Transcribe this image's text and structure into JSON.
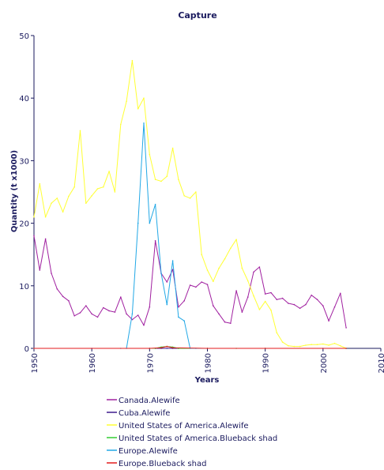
{
  "chart_data": {
    "type": "line",
    "title": "Capture",
    "xlabel": "Years",
    "ylabel": "Quantity (t x1000)",
    "xlim": [
      1950,
      2010
    ],
    "ylim": [
      0,
      50
    ],
    "xticks": [
      "1950",
      "1960",
      "1970",
      "1980",
      "1990",
      "2000",
      "2010"
    ],
    "yticks": [
      "0",
      "10",
      "20",
      "30",
      "40",
      "50"
    ],
    "grid": false,
    "legend_position": "bottom-left",
    "series": [
      {
        "name": "Canada.Alewife",
        "color": "#a020a0",
        "x": [
          1950,
          1951,
          1952,
          1953,
          1954,
          1955,
          1956,
          1957,
          1958,
          1959,
          1960,
          1961,
          1962,
          1963,
          1964,
          1965,
          1966,
          1967,
          1968,
          1969,
          1970,
          1971,
          1972,
          1973,
          1974,
          1975,
          1976,
          1977,
          1978,
          1979,
          1980,
          1981,
          1982,
          1983,
          1984,
          1985,
          1986,
          1987,
          1988,
          1989,
          1990,
          1991,
          1992,
          1993,
          1994,
          1995,
          1996,
          1997,
          1998,
          1999,
          2000,
          2001,
          2002,
          2003,
          2004
        ],
        "y": [
          18,
          12.5,
          17.5,
          12,
          9.5,
          8.3,
          7.6,
          5.2,
          5.7,
          6.8,
          5.5,
          5,
          6.5,
          6,
          5.8,
          8.2,
          5.5,
          4.6,
          5.3,
          3.7,
          6.6,
          17.2,
          12,
          10.6,
          12.6,
          6.6,
          7.6,
          10.1,
          9.8,
          10.6,
          10.2,
          6.8,
          5.5,
          4.2,
          4,
          9.2,
          5.8,
          8.2,
          12.2,
          13,
          8.7,
          8.9,
          7.8,
          8,
          7.2,
          7,
          6.4,
          7,
          8.5,
          7.8,
          6.8,
          4.4,
          6.6,
          8.8,
          3.3
        ]
      },
      {
        "name": "Cuba.Alewife",
        "color": "#3d1a8e",
        "x": [
          1950,
          1960,
          1970,
          1971,
          1972,
          1973,
          1974,
          1975,
          1980,
          1990,
          2000,
          2004
        ],
        "y": [
          0,
          0,
          0,
          0,
          0,
          0,
          0,
          0,
          0,
          0,
          0,
          0
        ]
      },
      {
        "name": "United States of America.Alewife",
        "color": "#ffff33",
        "x": [
          1950,
          1951,
          1952,
          1953,
          1954,
          1955,
          1956,
          1957,
          1958,
          1959,
          1960,
          1961,
          1962,
          1963,
          1964,
          1965,
          1966,
          1967,
          1968,
          1969,
          1970,
          1971,
          1972,
          1973,
          1974,
          1975,
          1976,
          1977,
          1978,
          1979,
          1980,
          1981,
          1982,
          1983,
          1984,
          1985,
          1986,
          1987,
          1988,
          1989,
          1990,
          1991,
          1992,
          1993,
          1994,
          1995,
          1996,
          1997,
          1998,
          1999,
          2000,
          2001,
          2002,
          2003,
          2004
        ],
        "y": [
          21,
          26.3,
          21,
          23.2,
          24,
          21.8,
          24.3,
          25.8,
          34.8,
          23.2,
          24.4,
          25.5,
          25.8,
          28.3,
          25,
          35.8,
          39.5,
          46,
          38.3,
          40,
          31,
          27,
          26.7,
          27.5,
          32,
          27,
          24.4,
          24,
          25,
          15,
          12.5,
          10.7,
          12.8,
          14.3,
          16,
          17.4,
          12.8,
          10.8,
          8.4,
          6.2,
          7.5,
          6.1,
          2.5,
          1,
          0.4,
          0.3,
          0.3,
          0.5,
          0.6,
          0.6,
          0.7,
          0.5,
          0.8,
          0.4,
          0
        ]
      },
      {
        "name": "United States of America.Blueback shad",
        "color": "#33cc33",
        "x": [
          1950,
          1970,
          1971,
          1972,
          1973,
          1974,
          1975,
          1980,
          1985,
          1990,
          2004
        ],
        "y": [
          0,
          0,
          0,
          0.2,
          0.3,
          0.2,
          0,
          0,
          0,
          0,
          0
        ]
      },
      {
        "name": "Europe.Alewife",
        "color": "#22a8e6",
        "x": [
          1950,
          1965,
          1966,
          1967,
          1968,
          1969,
          1970,
          1971,
          1972,
          1973,
          1974,
          1975,
          1976,
          1977,
          1978,
          2004
        ],
        "y": [
          0,
          0,
          0,
          5.5,
          20,
          36,
          20,
          23,
          12,
          7,
          14,
          5,
          4.4,
          0,
          0,
          0
        ]
      },
      {
        "name": "Europe.Blueback shad",
        "color": "#e31a1c",
        "x": [
          1950,
          1970,
          1972,
          1973,
          1974,
          1980,
          1990,
          2004
        ],
        "y": [
          0,
          0,
          0.1,
          0.3,
          0.1,
          0,
          0,
          0
        ]
      }
    ]
  }
}
